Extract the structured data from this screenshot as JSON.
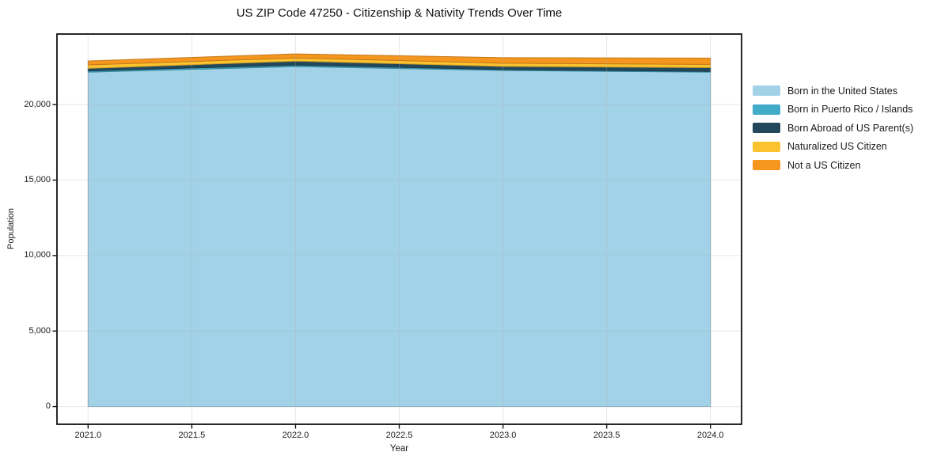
{
  "chart_data": {
    "type": "area",
    "stacked": true,
    "title": "US ZIP Code 47250 - Citizenship & Nativity Trends Over Time",
    "xlabel": "Year",
    "ylabel": "Population",
    "x": [
      2021,
      2022,
      2023,
      2024
    ],
    "series": [
      {
        "name": "Born in the United States",
        "color": "#a2d2e7",
        "values": [
          22150,
          22520,
          22260,
          22150
        ]
      },
      {
        "name": "Born in Puerto Rico / Islands",
        "color": "#42abc8",
        "values": [
          80,
          100,
          60,
          50
        ]
      },
      {
        "name": "Born Abroad of US Parent(s)",
        "color": "#23485c",
        "values": [
          170,
          260,
          210,
          250
        ]
      },
      {
        "name": "Naturalized US Citizen",
        "color": "#fcc330",
        "values": [
          230,
          210,
          210,
          210
        ]
      },
      {
        "name": "Not a US Citizen",
        "color": "#f5961f",
        "values": [
          260,
          270,
          370,
          420
        ]
      }
    ],
    "stacked_totals": [
      22890,
      23360,
      23110,
      23080
    ],
    "xticks": [
      2021.0,
      2021.5,
      2022.0,
      2022.5,
      2023.0,
      2023.5,
      2024.0
    ],
    "xtick_labels": [
      "2021.0",
      "2021.5",
      "2022.0",
      "2022.5",
      "2023.0",
      "2023.5",
      "2024.0"
    ],
    "yticks": [
      0,
      5000,
      10000,
      15000,
      20000
    ],
    "ytick_labels": [
      "0",
      "5,000",
      "10,000",
      "15,000",
      "20,000"
    ],
    "xlim": [
      2020.85,
      2024.15
    ],
    "ylim": [
      -1175,
      24675
    ],
    "grid": true,
    "grid_color": "#b0b0b0",
    "grid_alpha": 0.3,
    "spine_color": "#111111",
    "background": "#ffffff",
    "legend_position": "right outside"
  }
}
